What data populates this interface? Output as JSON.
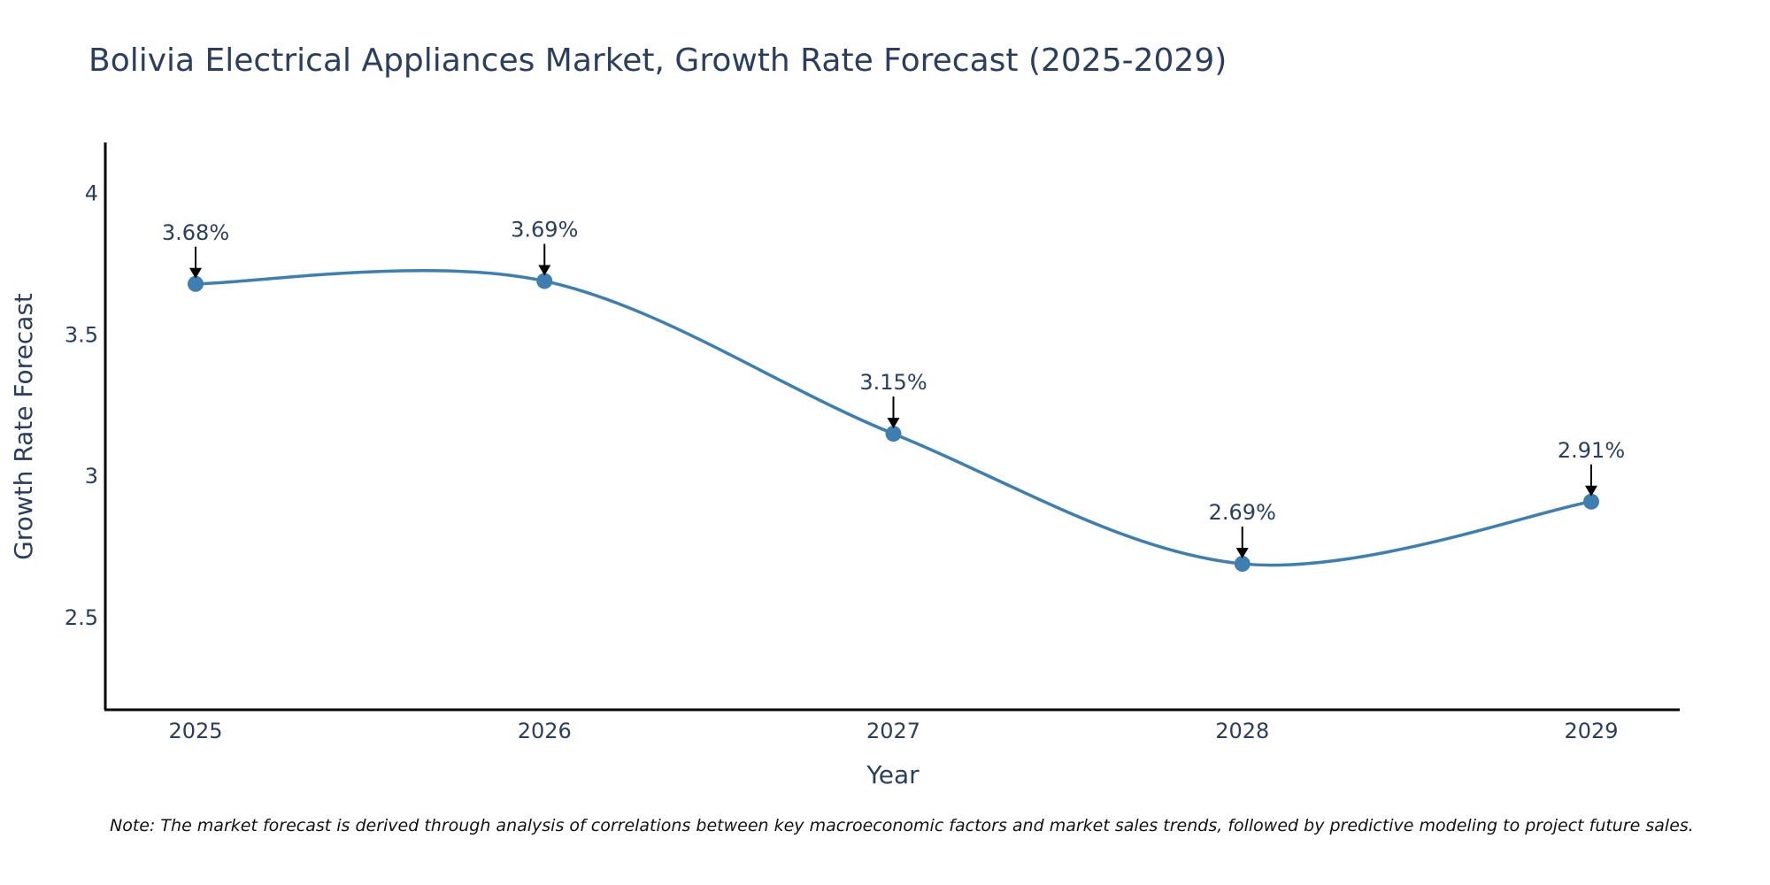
{
  "chart_data": {
    "type": "line",
    "title": "Bolivia Electrical Appliances Market, Growth Rate Forecast (2025-2029)",
    "xlabel": "Year",
    "ylabel": "Growth Rate Forecast",
    "categories": [
      "2025",
      "2026",
      "2027",
      "2028",
      "2029"
    ],
    "series": [
      {
        "name": "Growth Rate Forecast",
        "values": [
          3.68,
          3.69,
          3.15,
          2.69,
          2.91
        ],
        "labels": [
          "3.68%",
          "3.69%",
          "3.15%",
          "2.69%",
          "2.91%"
        ],
        "color": "#3d7fb0"
      }
    ],
    "ylim": [
      2.18,
      4.18
    ],
    "yticks": [
      2.5,
      3,
      3.5,
      4
    ],
    "ytick_labels": [
      "2.5",
      "3",
      "3.5",
      "4"
    ],
    "grid": false,
    "line_shape": "spline",
    "note": "Note: The market forecast is derived through analysis of correlations between key macroeconomic factors and market sales trends, followed by predictive modeling to project future sales."
  }
}
